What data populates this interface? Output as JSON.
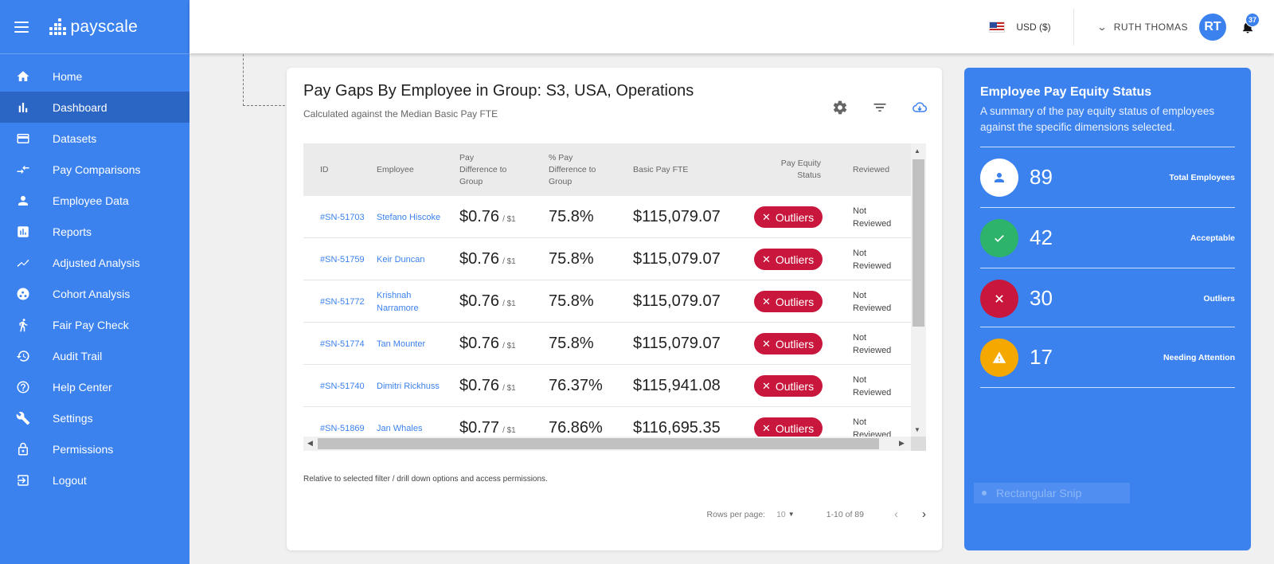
{
  "app": {
    "name": "payscale"
  },
  "sidebar": {
    "items": [
      {
        "label": "Home",
        "icon": "home-icon"
      },
      {
        "label": "Dashboard",
        "icon": "bar-chart-icon",
        "active": true
      },
      {
        "label": "Datasets",
        "icon": "card-icon"
      },
      {
        "label": "Pay Comparisons",
        "icon": "compare-arrows-icon"
      },
      {
        "label": "Employee Data",
        "icon": "person-icon"
      },
      {
        "label": "Reports",
        "icon": "report-icon"
      },
      {
        "label": "Adjusted Analysis",
        "icon": "trend-line-icon"
      },
      {
        "label": "Cohort Analysis",
        "icon": "cohort-icon"
      },
      {
        "label": "Fair Pay Check",
        "icon": "walking-person-icon"
      },
      {
        "label": "Audit Trail",
        "icon": "history-icon"
      },
      {
        "label": "Help Center",
        "icon": "help-icon"
      },
      {
        "label": "Settings",
        "icon": "wrench-icon"
      },
      {
        "label": "Permissions",
        "icon": "lock-icon"
      },
      {
        "label": "Logout",
        "icon": "logout-icon"
      }
    ]
  },
  "topbar": {
    "currency": "USD ($)",
    "user_name": "RUTH THOMAS",
    "avatar_initials": "RT",
    "notification_count": "37"
  },
  "card": {
    "title": "Pay Gaps By Employee in Group: S3, USA, Operations",
    "subtitle": "Calculated against the Median Basic Pay FTE",
    "columns": {
      "id": "ID",
      "employee": "Employee",
      "pay_diff": "Pay Difference to Group",
      "pct_diff": "% Pay Difference to Group",
      "basic_pay": "Basic Pay FTE",
      "status": "Pay Equity Status",
      "reviewed": "Reviewed"
    },
    "rows": [
      {
        "id": "#SN-51703",
        "employee": "Stefano Hiscoke",
        "pay_diff": "$0.76",
        "pay_unit": "/ $1",
        "pct": "75.8%",
        "basic_pay": "$115,079.07",
        "status": "Outliers",
        "reviewed": "Not Reviewed"
      },
      {
        "id": "#SN-51759",
        "employee": "Keir Duncan",
        "pay_diff": "$0.76",
        "pay_unit": "/ $1",
        "pct": "75.8%",
        "basic_pay": "$115,079.07",
        "status": "Outliers",
        "reviewed": "Not Reviewed"
      },
      {
        "id": "#SN-51772",
        "employee": "Krishnah Narramore",
        "pay_diff": "$0.76",
        "pay_unit": "/ $1",
        "pct": "75.8%",
        "basic_pay": "$115,079.07",
        "status": "Outliers",
        "reviewed": "Not Reviewed"
      },
      {
        "id": "#SN-51774",
        "employee": "Tan Mounter",
        "pay_diff": "$0.76",
        "pay_unit": "/ $1",
        "pct": "75.8%",
        "basic_pay": "$115,079.07",
        "status": "Outliers",
        "reviewed": "Not Reviewed"
      },
      {
        "id": "#SN-51740",
        "employee": "Dimitri Rickhuss",
        "pay_diff": "$0.76",
        "pay_unit": "/ $1",
        "pct": "76.37%",
        "basic_pay": "$115,941.08",
        "status": "Outliers",
        "reviewed": "Not Reviewed"
      },
      {
        "id": "#SN-51869",
        "employee": "Jan Whales",
        "pay_diff": "$0.77",
        "pay_unit": "/ $1",
        "pct": "76.86%",
        "basic_pay": "$116,695.35",
        "status": "Outliers",
        "reviewed": "Not Reviewed"
      }
    ],
    "footnote": "Relative to selected filter / drill down options and access permissions.",
    "pagination": {
      "rows_per_page_label": "Rows per page:",
      "rows_per_page_value": "10",
      "range": "1-10 of 89"
    }
  },
  "panel": {
    "title": "Employee Pay Equity Status",
    "description": "A summary of the pay equity status of employees against the specific dimensions selected.",
    "stats": [
      {
        "value": "89",
        "label": "Total Employees",
        "icon": "person-icon",
        "color": "#ffffff"
      },
      {
        "value": "42",
        "label": "Acceptable",
        "icon": "check-icon",
        "color": "#2db36a"
      },
      {
        "value": "30",
        "label": "Outliers",
        "icon": "close-icon",
        "color": "#c8163c"
      },
      {
        "value": "17",
        "label": "Needing Attention",
        "icon": "warning-icon",
        "color": "#f5a800"
      }
    ],
    "snip_label": "Rectangular Snip"
  },
  "colors": {
    "brand": "#3b82ee",
    "sidebar_active": "#2c66c4",
    "outlier": "#c8163c",
    "acceptable": "#2db36a",
    "attention": "#f5a800"
  }
}
